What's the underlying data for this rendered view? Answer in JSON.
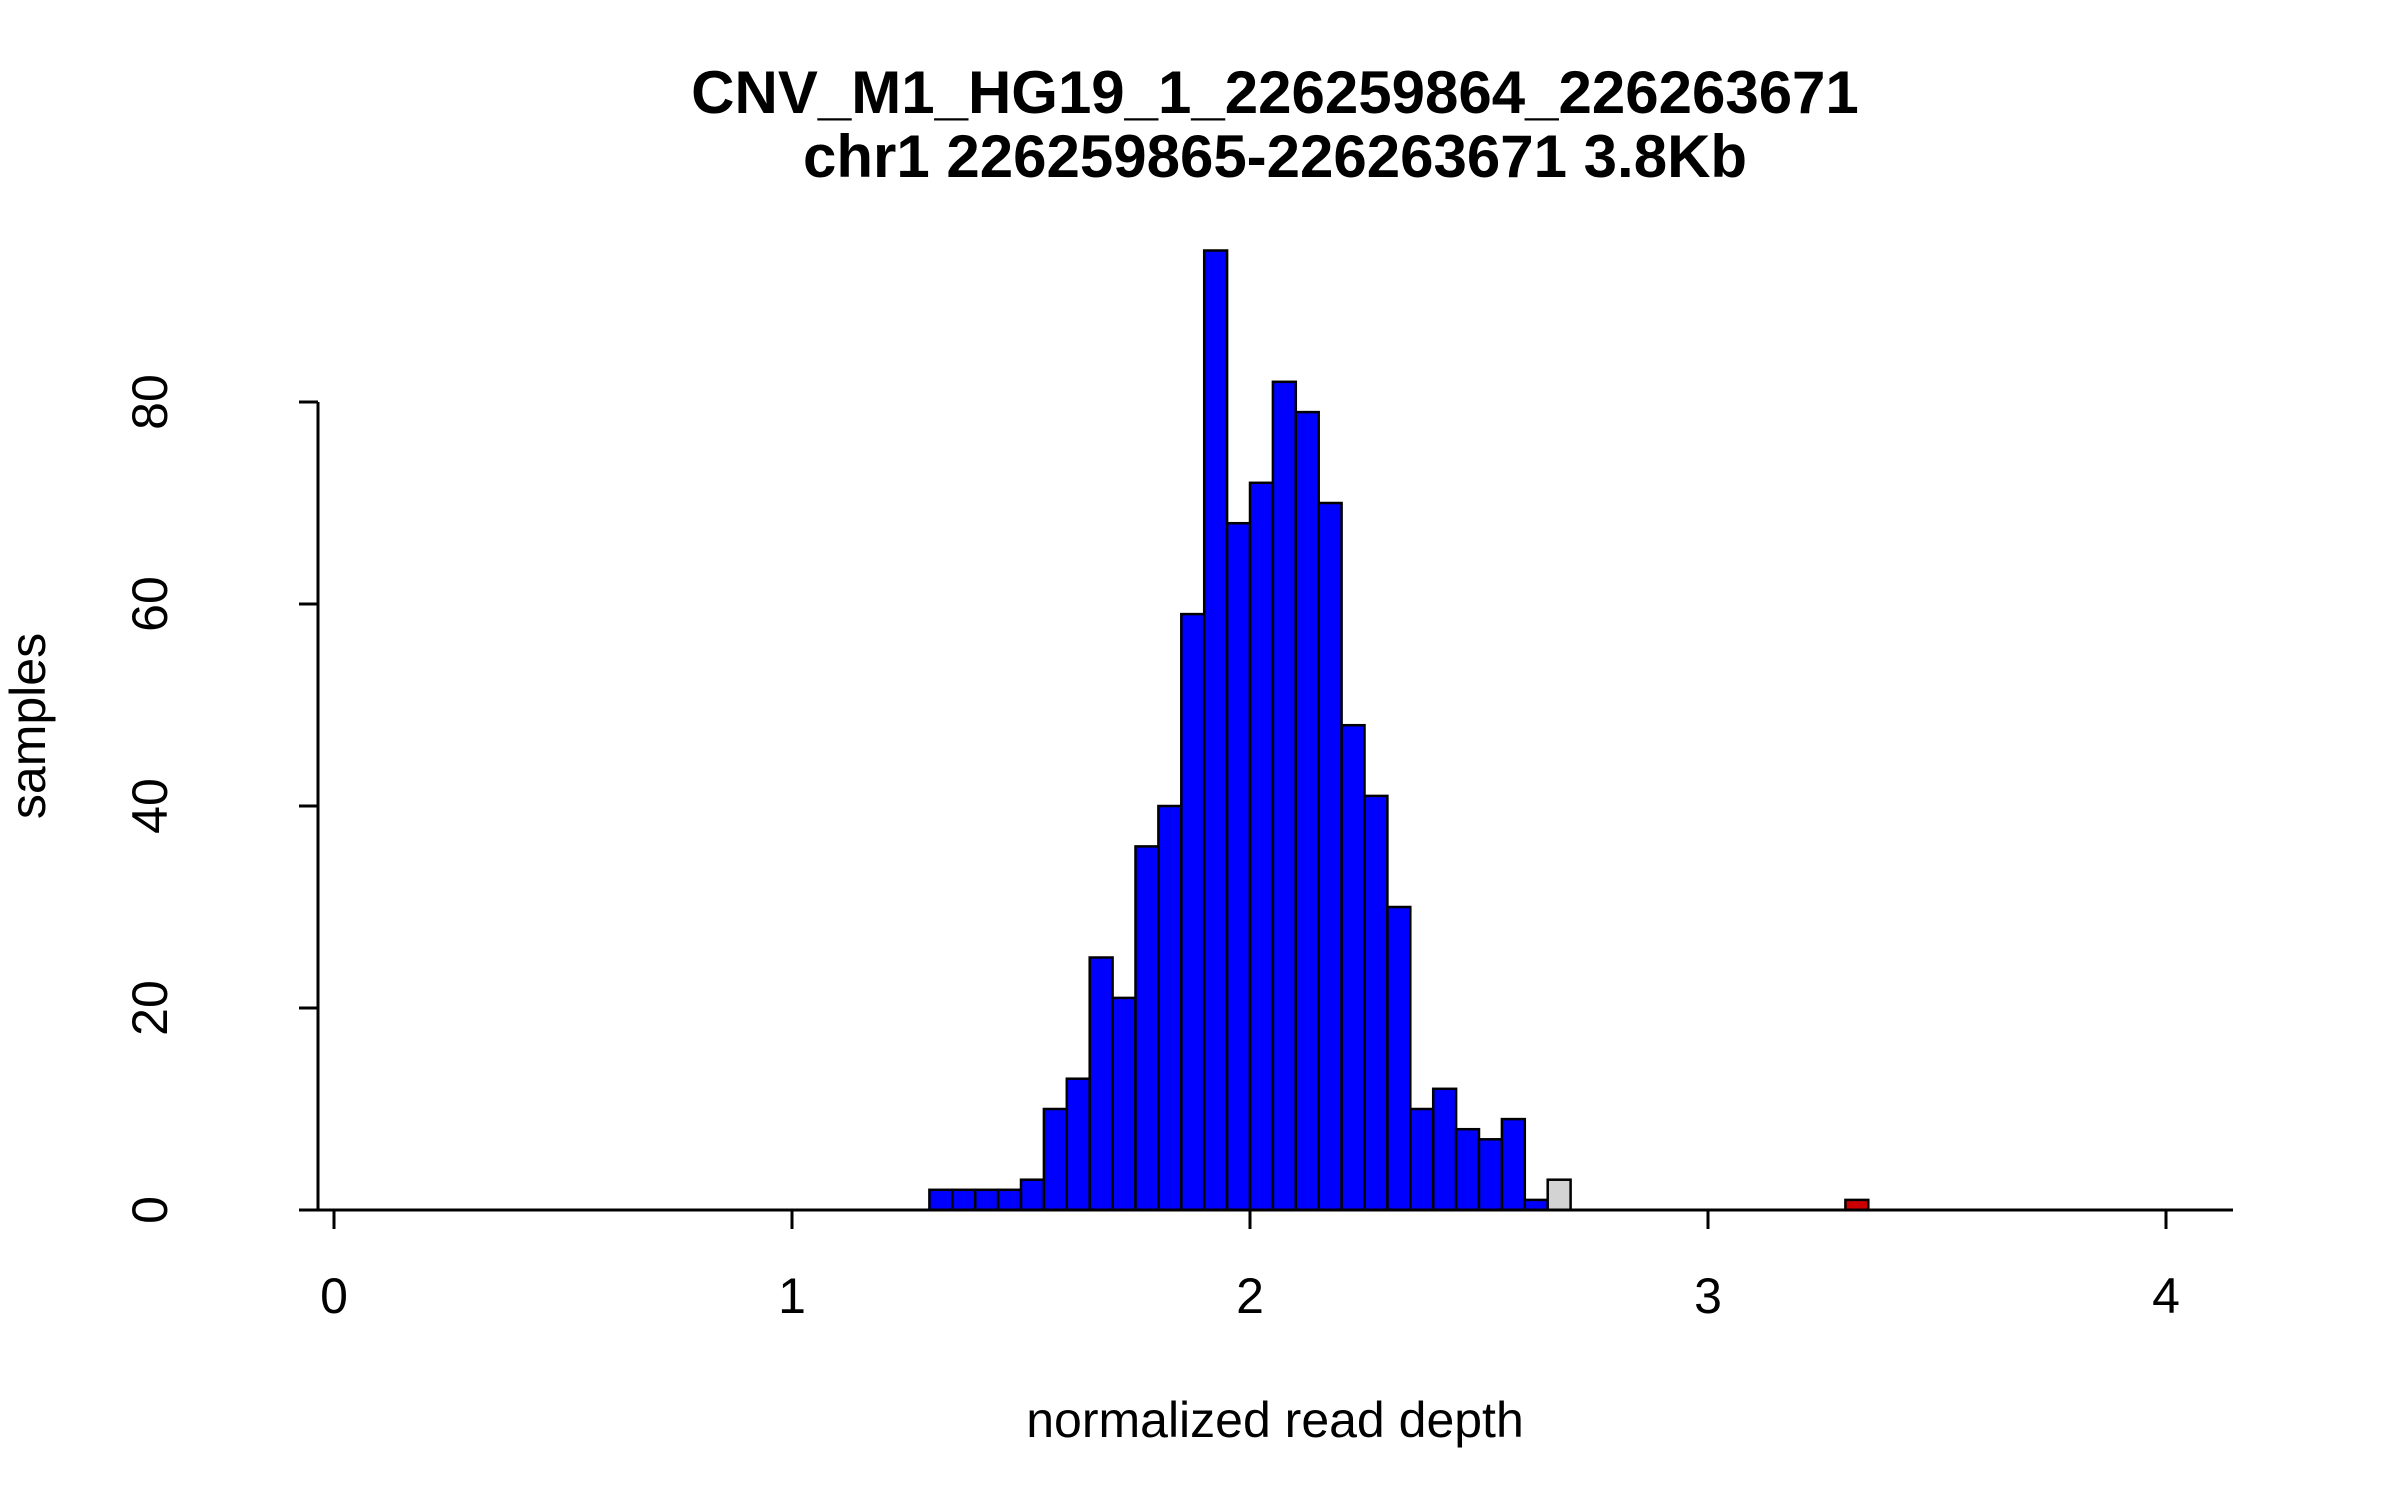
{
  "figure": {
    "background": "#FFFFFF"
  },
  "chart_data": {
    "type": "bar",
    "chart_kind": "histogram",
    "title": "CNV_M1_HG19_1_226259864_226263671",
    "subtitle": "chr1 226259865-226263671 3.8Kb",
    "xlabel": "normalized read depth",
    "ylabel": "samples",
    "xlim": [
      0,
      4.1
    ],
    "ylim": [
      0,
      95
    ],
    "x_ticks": [
      "0",
      "1",
      "2",
      "3",
      "4"
    ],
    "y_ticks": [
      "0",
      "20",
      "40",
      "60",
      "80"
    ],
    "bin_width": 0.05,
    "grid": false,
    "bars": [
      {
        "x": 1.3,
        "count": 2,
        "color": "blue"
      },
      {
        "x": 1.35,
        "count": 2,
        "color": "blue"
      },
      {
        "x": 1.4,
        "count": 2,
        "color": "blue"
      },
      {
        "x": 1.45,
        "count": 2,
        "color": "blue"
      },
      {
        "x": 1.5,
        "count": 3,
        "color": "blue"
      },
      {
        "x": 1.55,
        "count": 10,
        "color": "blue"
      },
      {
        "x": 1.6,
        "count": 13,
        "color": "blue"
      },
      {
        "x": 1.65,
        "count": 25,
        "color": "blue"
      },
      {
        "x": 1.7,
        "count": 21,
        "color": "blue"
      },
      {
        "x": 1.75,
        "count": 36,
        "color": "blue"
      },
      {
        "x": 1.8,
        "count": 40,
        "color": "blue"
      },
      {
        "x": 1.85,
        "count": 59,
        "color": "blue"
      },
      {
        "x": 1.9,
        "count": 95,
        "color": "blue"
      },
      {
        "x": 1.95,
        "count": 68,
        "color": "blue"
      },
      {
        "x": 2.0,
        "count": 72,
        "color": "blue"
      },
      {
        "x": 2.05,
        "count": 82,
        "color": "blue"
      },
      {
        "x": 2.1,
        "count": 79,
        "color": "blue"
      },
      {
        "x": 2.15,
        "count": 70,
        "color": "blue"
      },
      {
        "x": 2.2,
        "count": 48,
        "color": "blue"
      },
      {
        "x": 2.25,
        "count": 41,
        "color": "blue"
      },
      {
        "x": 2.3,
        "count": 30,
        "color": "blue"
      },
      {
        "x": 2.35,
        "count": 10,
        "color": "blue"
      },
      {
        "x": 2.4,
        "count": 12,
        "color": "blue"
      },
      {
        "x": 2.45,
        "count": 8,
        "color": "blue"
      },
      {
        "x": 2.5,
        "count": 7,
        "color": "blue"
      },
      {
        "x": 2.55,
        "count": 9,
        "color": "blue"
      },
      {
        "x": 2.6,
        "count": 1,
        "color": "blue"
      },
      {
        "x": 2.65,
        "count": 3,
        "color": "gray"
      },
      {
        "x": 3.3,
        "count": 1,
        "color": "red"
      }
    ],
    "colors": {
      "blue": "#0000FF",
      "gray": "#D3D3D3",
      "red": "#CC0000",
      "outline": "#000000",
      "axis": "#000000"
    }
  }
}
